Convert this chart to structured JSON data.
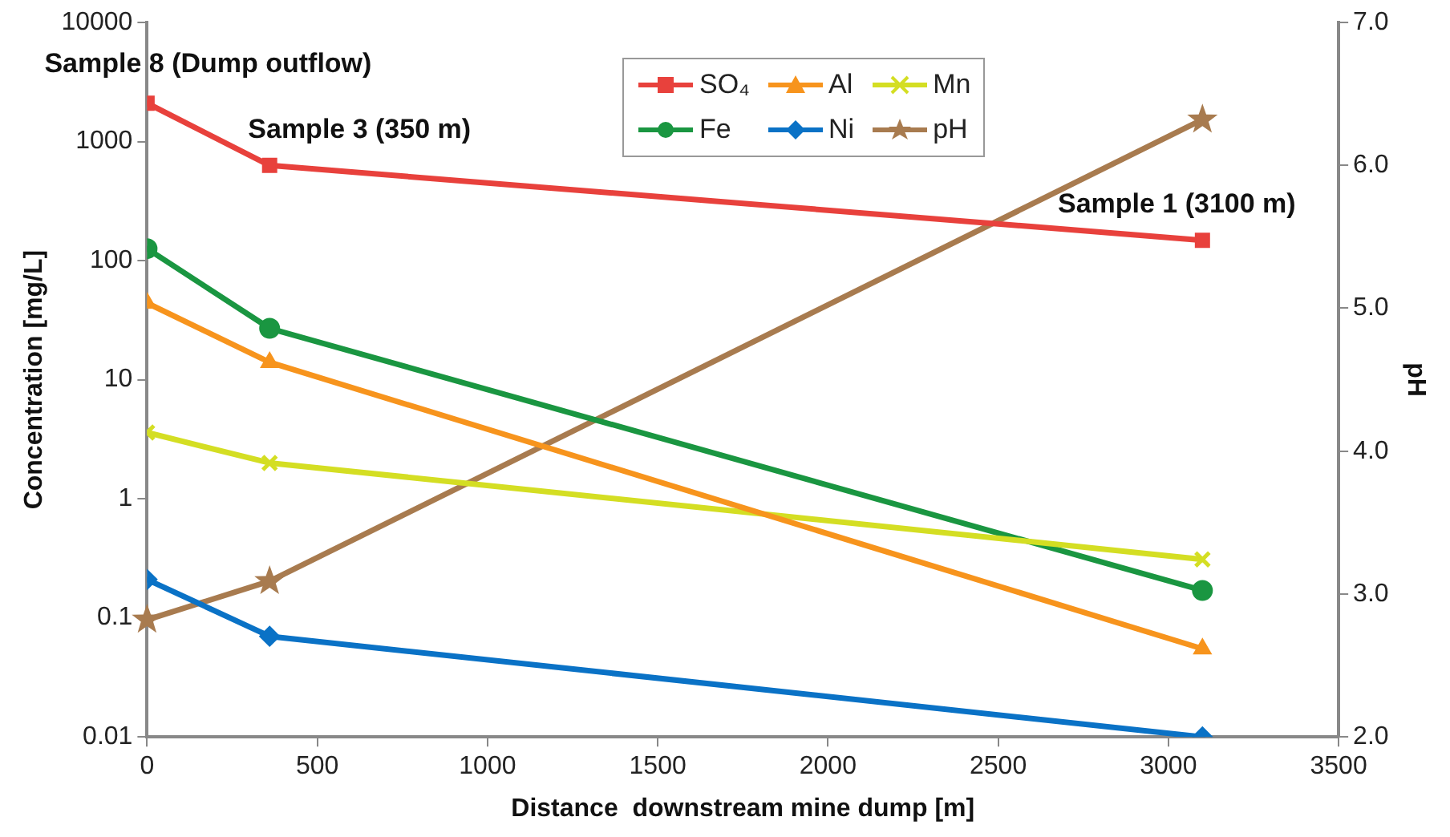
{
  "chart_data": {
    "type": "line",
    "xlabel": "Distance  downstream mine dump [m]",
    "ylabel": "Concentration [mg/L]",
    "y2label": "pH",
    "x": [
      0,
      360,
      3100
    ],
    "series": [
      {
        "name": "SO₄",
        "color": "#e8413c",
        "marker": "square",
        "values": [
          2100,
          630,
          148
        ]
      },
      {
        "name": "Al",
        "color": "#f7941d",
        "marker": "triangle",
        "values": [
          44,
          14,
          0.055
        ]
      },
      {
        "name": "Mn",
        "color": "#d4de23",
        "marker": "cross",
        "values": [
          3.6,
          2.0,
          0.31
        ]
      },
      {
        "name": "Fe",
        "color": "#1a9641",
        "marker": "circle",
        "values": [
          126,
          27,
          0.17
        ]
      },
      {
        "name": "Ni",
        "color": "#0a72c6",
        "marker": "diamond",
        "values": [
          0.21,
          0.07,
          0.01
        ]
      },
      {
        "name": "pH",
        "color": "#a87b4f",
        "marker": "star",
        "axis": "y2",
        "values": [
          2.82,
          3.09,
          6.32
        ]
      }
    ],
    "xlim": [
      0,
      3500
    ],
    "xticks": [
      0,
      500,
      1000,
      1500,
      2000,
      2500,
      3000,
      3500
    ],
    "log": "y",
    "ylim": [
      0.01,
      10000
    ],
    "yticks": [
      0.01,
      0.1,
      1,
      10,
      100,
      1000,
      10000
    ],
    "y2lim": [
      2,
      7
    ],
    "y2ticks": [
      {
        "value": 2,
        "label": "2.0"
      },
      {
        "value": 3,
        "label": "3.0"
      },
      {
        "value": 4,
        "label": "4.0"
      },
      {
        "value": 5,
        "label": "5.0"
      },
      {
        "value": 6,
        "label": "6.0"
      },
      {
        "value": 7,
        "label": "7.0"
      }
    ],
    "annotations": [
      {
        "text": "Sample 8 (Dump outflow)",
        "x": 0,
        "y": 2100
      },
      {
        "text": "Sample 3 (350 m)",
        "x": 360,
        "y": 630
      },
      {
        "text": "Sample 1 (3100 m)",
        "x": 3100,
        "y": 148
      }
    ],
    "grid": false,
    "legend": "top",
    "line_style": "solid"
  }
}
